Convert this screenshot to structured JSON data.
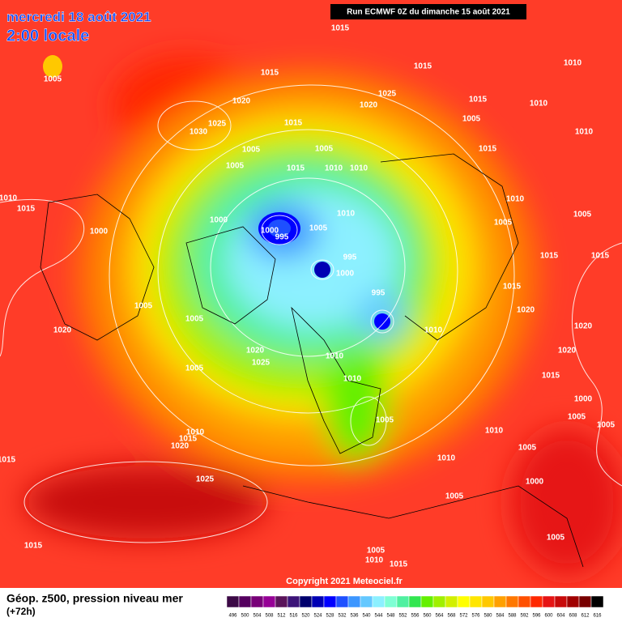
{
  "header": {
    "title": "mercredi 18 août 2021",
    "subtitle": "2:00 locale",
    "run": "Run ECMWF 0Z du dimanche 15 août 2021"
  },
  "copyright": "Copyright 2021 Meteociel.fr",
  "footer": {
    "title": "Géop. z500, pression niveau mer",
    "forecast": "(+72h)"
  },
  "colorbar": {
    "values": [
      496,
      500,
      504,
      508,
      512,
      516,
      520,
      524,
      528,
      532,
      536,
      540,
      544,
      548,
      552,
      556,
      560,
      564,
      568,
      572,
      576,
      580,
      584,
      588,
      592,
      596,
      600,
      604,
      608,
      612,
      616
    ],
    "colors": [
      "#3c0a46",
      "#55005f",
      "#780078",
      "#960096",
      "#5a145a",
      "#3c1478",
      "#00006e",
      "#0000b4",
      "#0000ff",
      "#1e50ff",
      "#3c96ff",
      "#64c8ff",
      "#8cf0ff",
      "#7fffd4",
      "#50f0a0",
      "#32e650",
      "#64f000",
      "#a0f000",
      "#d2f000",
      "#ffff00",
      "#ffe600",
      "#ffc800",
      "#ffa000",
      "#ff7800",
      "#ff5000",
      "#ff2800",
      "#e61414",
      "#c80a0a",
      "#a00000",
      "#780000",
      "#000000"
    ]
  },
  "isobar_labels": [
    "1015",
    "1005",
    "1015",
    "1015",
    "1010",
    "1020",
    "1025",
    "1020",
    "1015",
    "1010",
    "1030",
    "1025",
    "1015",
    "1005",
    "1010",
    "1005",
    "1005",
    "1015",
    "1005",
    "1015",
    "1010",
    "1010",
    "1010",
    "1010",
    "1015",
    "1000",
    "1010",
    "1005",
    "1005",
    "1000",
    "995",
    "1005",
    "1000",
    "995",
    "1015",
    "1015",
    "1000",
    "995",
    "1015",
    "1005",
    "1020",
    "1005",
    "1020",
    "1010",
    "1020",
    "1020",
    "1010",
    "1025",
    "1020",
    "1005",
    "1010",
    "1015",
    "1000",
    "1005",
    "1005",
    "1010",
    "1015",
    "1010",
    "1020",
    "1005",
    "1005",
    "1015",
    "1010",
    "1025",
    "1000",
    "1005",
    "1015",
    "1005",
    "1005",
    "1010",
    "1015"
  ]
}
